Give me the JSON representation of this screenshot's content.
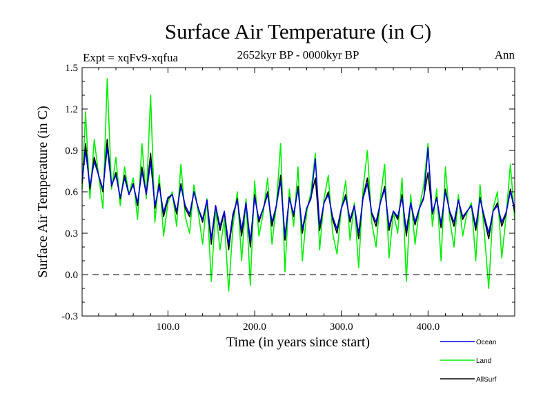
{
  "chart_data": {
    "type": "line",
    "title": "Surface Air Temperature (in C)",
    "subtitle": "2652kyr BP - 0000kyr BP",
    "left_note": "Expt = xqFv9-xqfua",
    "right_note": "Ann",
    "xlabel": "Time (in years since start)",
    "ylabel": "Surface Air Temperature (in C)",
    "xlim": [
      1,
      500
    ],
    "ylim": [
      -0.3,
      1.5
    ],
    "x_ticks": [
      100,
      200,
      300,
      400
    ],
    "x_tick_labels": [
      "100.0",
      "200.0",
      "300.0",
      "400.0"
    ],
    "y_ticks": [
      -0.3,
      0.0,
      0.3,
      0.6,
      0.9,
      1.2,
      1.5
    ],
    "y_tick_labels": [
      "-0.3",
      "0.0",
      "0.3",
      "0.6",
      "0.9",
      "1.2",
      "1.5"
    ],
    "reference_line": {
      "y": 0.0,
      "style": "dashed"
    },
    "legend_position": "bottom-right",
    "series": [
      {
        "name": "Land",
        "color": "#00ee00",
        "x": [
          1,
          5,
          10,
          15,
          20,
          25,
          30,
          35,
          40,
          45,
          50,
          55,
          60,
          65,
          70,
          75,
          80,
          85,
          90,
          95,
          100,
          105,
          110,
          115,
          120,
          125,
          130,
          135,
          140,
          145,
          150,
          155,
          160,
          165,
          170,
          175,
          180,
          185,
          190,
          195,
          200,
          205,
          210,
          215,
          220,
          225,
          230,
          235,
          240,
          245,
          250,
          255,
          260,
          265,
          270,
          275,
          280,
          285,
          290,
          295,
          300,
          305,
          310,
          315,
          320,
          325,
          330,
          335,
          340,
          345,
          350,
          355,
          360,
          365,
          370,
          375,
          380,
          385,
          390,
          395,
          400,
          405,
          410,
          415,
          420,
          425,
          430,
          435,
          440,
          445,
          450,
          455,
          460,
          465,
          470,
          475,
          480,
          485,
          490,
          495,
          500
        ],
        "values": [
          0.62,
          1.18,
          0.55,
          0.98,
          0.72,
          0.48,
          1.42,
          0.62,
          0.85,
          0.5,
          0.78,
          0.58,
          0.7,
          0.4,
          0.95,
          0.55,
          1.3,
          0.38,
          0.72,
          0.28,
          0.52,
          0.6,
          0.35,
          0.8,
          0.42,
          0.3,
          0.65,
          0.45,
          0.22,
          0.55,
          -0.05,
          0.48,
          0.18,
          0.4,
          -0.12,
          0.35,
          0.6,
          0.1,
          0.55,
          -0.08,
          0.68,
          0.28,
          0.45,
          0.7,
          0.22,
          0.5,
          0.95,
          0.02,
          0.62,
          0.35,
          0.78,
          0.1,
          0.45,
          0.6,
          0.88,
          0.18,
          0.55,
          0.72,
          0.3,
          0.15,
          0.48,
          0.68,
          0.25,
          0.52,
          0.05,
          0.62,
          0.9,
          0.38,
          0.2,
          0.55,
          0.8,
          0.12,
          0.45,
          0.3,
          0.7,
          -0.05,
          0.58,
          0.22,
          0.48,
          0.65,
          0.95,
          0.35,
          0.62,
          0.1,
          0.78,
          0.4,
          0.2,
          0.58,
          0.28,
          0.45,
          0.52,
          0.1,
          0.65,
          0.3,
          -0.1,
          0.48,
          0.6,
          0.12,
          0.42,
          0.8,
          0.4
        ]
      },
      {
        "name": "AllSurf",
        "color": "#000000",
        "x": [
          1,
          5,
          10,
          15,
          20,
          25,
          30,
          35,
          40,
          45,
          50,
          55,
          60,
          65,
          70,
          75,
          80,
          85,
          90,
          95,
          100,
          105,
          110,
          115,
          120,
          125,
          130,
          135,
          140,
          145,
          150,
          155,
          160,
          165,
          170,
          175,
          180,
          185,
          190,
          195,
          200,
          205,
          210,
          215,
          220,
          225,
          230,
          235,
          240,
          245,
          250,
          255,
          260,
          265,
          270,
          275,
          280,
          285,
          290,
          295,
          300,
          305,
          310,
          315,
          320,
          325,
          330,
          335,
          340,
          345,
          350,
          355,
          360,
          365,
          370,
          375,
          380,
          385,
          390,
          395,
          400,
          405,
          410,
          415,
          420,
          425,
          430,
          435,
          440,
          445,
          450,
          455,
          460,
          465,
          470,
          475,
          480,
          485,
          490,
          495,
          500
        ],
        "values": [
          0.66,
          0.95,
          0.62,
          0.85,
          0.72,
          0.6,
          0.98,
          0.64,
          0.74,
          0.55,
          0.72,
          0.58,
          0.66,
          0.5,
          0.78,
          0.58,
          0.88,
          0.48,
          0.66,
          0.42,
          0.55,
          0.58,
          0.44,
          0.66,
          0.48,
          0.42,
          0.6,
          0.48,
          0.38,
          0.54,
          0.22,
          0.5,
          0.32,
          0.45,
          0.18,
          0.42,
          0.55,
          0.28,
          0.52,
          0.2,
          0.58,
          0.38,
          0.48,
          0.6,
          0.35,
          0.5,
          0.72,
          0.25,
          0.56,
          0.42,
          0.64,
          0.3,
          0.48,
          0.56,
          0.7,
          0.32,
          0.52,
          0.6,
          0.4,
          0.3,
          0.48,
          0.58,
          0.38,
          0.5,
          0.26,
          0.56,
          0.7,
          0.44,
          0.35,
          0.52,
          0.64,
          0.32,
          0.46,
          0.4,
          0.58,
          0.28,
          0.52,
          0.36,
          0.48,
          0.56,
          0.74,
          0.44,
          0.56,
          0.34,
          0.62,
          0.45,
          0.35,
          0.54,
          0.4,
          0.46,
          0.5,
          0.32,
          0.56,
          0.4,
          0.26,
          0.46,
          0.52,
          0.35,
          0.44,
          0.62,
          0.45
        ]
      },
      {
        "name": "Ocean",
        "color": "#0000dd",
        "x": [
          1,
          5,
          10,
          15,
          20,
          25,
          30,
          35,
          40,
          45,
          50,
          55,
          60,
          65,
          70,
          75,
          80,
          85,
          90,
          95,
          100,
          105,
          110,
          115,
          120,
          125,
          130,
          135,
          140,
          145,
          150,
          155,
          160,
          165,
          170,
          175,
          180,
          185,
          190,
          195,
          200,
          205,
          210,
          215,
          220,
          225,
          230,
          235,
          240,
          245,
          250,
          255,
          260,
          265,
          270,
          275,
          280,
          285,
          290,
          295,
          300,
          305,
          310,
          315,
          320,
          325,
          330,
          335,
          340,
          345,
          350,
          355,
          360,
          365,
          370,
          375,
          380,
          385,
          390,
          395,
          400,
          405,
          410,
          415,
          420,
          425,
          430,
          435,
          440,
          445,
          450,
          455,
          460,
          465,
          470,
          475,
          480,
          485,
          490,
          495,
          500
        ],
        "values": [
          0.68,
          0.9,
          0.64,
          0.82,
          0.72,
          0.62,
          0.92,
          0.65,
          0.72,
          0.56,
          0.7,
          0.58,
          0.65,
          0.52,
          0.75,
          0.58,
          0.82,
          0.5,
          0.64,
          0.45,
          0.56,
          0.58,
          0.46,
          0.64,
          0.5,
          0.44,
          0.6,
          0.48,
          0.4,
          0.54,
          0.26,
          0.5,
          0.35,
          0.46,
          0.22,
          0.44,
          0.54,
          0.32,
          0.52,
          0.24,
          0.56,
          0.4,
          0.48,
          0.58,
          0.38,
          0.5,
          0.68,
          0.28,
          0.55,
          0.44,
          0.62,
          0.33,
          0.48,
          0.55,
          0.84,
          0.35,
          0.52,
          0.58,
          0.42,
          0.33,
          0.48,
          0.56,
          0.4,
          0.5,
          0.3,
          0.55,
          0.66,
          0.45,
          0.38,
          0.52,
          0.62,
          0.35,
          0.46,
          0.42,
          0.56,
          0.32,
          0.52,
          0.38,
          0.48,
          0.55,
          0.92,
          0.45,
          0.55,
          0.37,
          0.6,
          0.46,
          0.38,
          0.54,
          0.42,
          0.46,
          0.5,
          0.35,
          0.55,
          0.42,
          0.3,
          0.46,
          0.5,
          0.38,
          0.45,
          0.6,
          0.48
        ]
      }
    ]
  },
  "legend": [
    {
      "name": "Ocean",
      "color": "#0000dd"
    },
    {
      "name": "Land",
      "color": "#00ee00"
    },
    {
      "name": "AllSurf",
      "color": "#000000"
    }
  ]
}
